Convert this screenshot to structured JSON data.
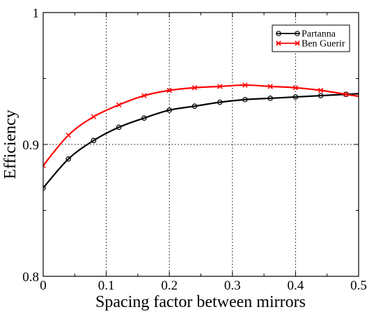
{
  "chart_data": {
    "type": "line",
    "title": "",
    "xlabel": "Spacing factor between mirrors",
    "ylabel": "Efficiency",
    "xlim": [
      0,
      0.5
    ],
    "ylim": [
      0.8,
      1.0
    ],
    "xticks": [
      0,
      0.1,
      0.2,
      0.3,
      0.4,
      0.5
    ],
    "xtick_labels": [
      "0",
      "0.1",
      "0.2",
      "0.3",
      "0.4",
      "0.5"
    ],
    "yticks": [
      0.8,
      0.9,
      1.0
    ],
    "ytick_labels": [
      "0.8",
      "0.9",
      "1"
    ],
    "grid": "dotted",
    "legend_position": "top-right",
    "series": [
      {
        "name": "Partanna",
        "color": "#000000",
        "marker": "circle",
        "x": [
          0,
          0.04,
          0.08,
          0.12,
          0.16,
          0.2,
          0.24,
          0.28,
          0.32,
          0.36,
          0.4,
          0.44,
          0.48
        ],
        "y": [
          0.867,
          0.889,
          0.903,
          0.913,
          0.92,
          0.926,
          0.929,
          0.932,
          0.934,
          0.935,
          0.936,
          0.937,
          0.938
        ]
      },
      {
        "name": "Ben Guerir",
        "color": "#ff0000",
        "marker": "x",
        "x": [
          0,
          0.04,
          0.08,
          0.12,
          0.16,
          0.2,
          0.24,
          0.28,
          0.32,
          0.36,
          0.4,
          0.44,
          0.48
        ],
        "y": [
          0.884,
          0.907,
          0.921,
          0.93,
          0.937,
          0.941,
          0.943,
          0.944,
          0.945,
          0.944,
          0.943,
          0.941,
          0.938
        ]
      }
    ]
  }
}
